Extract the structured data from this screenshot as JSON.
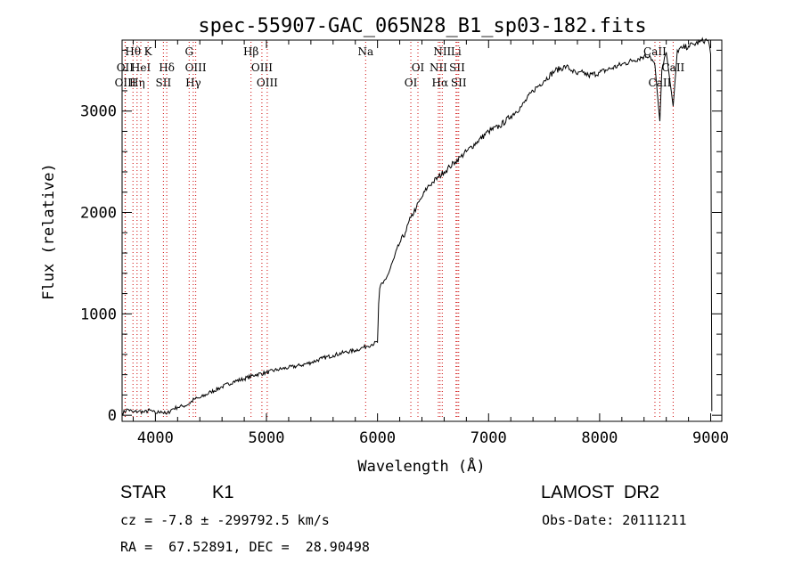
{
  "chart_data": {
    "type": "line",
    "title": "spec-55907-GAC_065N28_B1_sp03-182.fits",
    "xlabel": "Wavelength (Å)",
    "ylabel": "Flux (relative)",
    "xlim": [
      3700,
      9100
    ],
    "ylim": [
      -60,
      3700
    ],
    "xticks": [
      4000,
      5000,
      6000,
      7000,
      8000,
      9000
    ],
    "xtick_labels": [
      "4000",
      "5000",
      "6000",
      "7000",
      "8000",
      "9000"
    ],
    "yticks": [
      0,
      1000,
      2000,
      3000
    ],
    "ytick_labels": [
      "0",
      "1000",
      "2000",
      "3000"
    ],
    "line_color": "#000000",
    "marker_color": "#cc0000",
    "series": [
      {
        "x": [
          3700,
          3750,
          3800,
          3850,
          3900,
          3950,
          4000,
          4050,
          4100,
          4150,
          4200,
          4250,
          4300,
          4350,
          4400,
          4500,
          4600,
          4700,
          4800,
          4900,
          5000,
          5100,
          5200,
          5300,
          5400,
          5500,
          5600,
          5700,
          5800,
          5850,
          5900,
          5950,
          6000,
          6010,
          6020,
          6050,
          6100,
          6150,
          6200,
          6250,
          6300,
          6350,
          6400,
          6450,
          6500,
          6550,
          6600,
          6650,
          6700,
          6750,
          6800,
          6900,
          7000,
          7100,
          7200,
          7300,
          7400,
          7500,
          7600,
          7700,
          7750,
          7800,
          7850,
          7900,
          8000,
          8100,
          8200,
          8300,
          8400,
          8450,
          8498,
          8542,
          8560,
          8600,
          8662,
          8700,
          8750,
          8800,
          8850,
          8900,
          8950,
          8980,
          9000,
          9010
        ],
        "y": [
          20,
          60,
          30,
          40,
          30,
          50,
          20,
          40,
          10,
          60,
          80,
          90,
          110,
          160,
          170,
          230,
          280,
          330,
          360,
          400,
          420,
          450,
          470,
          490,
          520,
          560,
          590,
          620,
          640,
          660,
          680,
          700,
          720,
          1100,
          1250,
          1300,
          1400,
          1550,
          1700,
          1800,
          1950,
          2050,
          2150,
          2250,
          2300,
          2350,
          2400,
          2450,
          2500,
          2550,
          2600,
          2700,
          2800,
          2850,
          2950,
          3050,
          3200,
          3300,
          3400,
          3440,
          3400,
          3360,
          3380,
          3350,
          3380,
          3420,
          3460,
          3500,
          3540,
          3550,
          3450,
          2900,
          3400,
          3580,
          3050,
          3600,
          3620,
          3640,
          3660,
          3680,
          3700,
          3690,
          3560,
          40
        ]
      }
    ],
    "line_markers": [
      {
        "x": 3727,
        "label": "OII",
        "row": 1
      },
      {
        "x": 3729,
        "label": "OIII",
        "row": 2
      },
      {
        "x": 3798,
        "label": "Hθ",
        "row": 0
      },
      {
        "x": 3835,
        "label": "Hη",
        "row": 2
      },
      {
        "x": 3869,
        "label": "HeI",
        "row": 1
      },
      {
        "x": 3934,
        "label": "K",
        "row": 0
      },
      {
        "x": 4102,
        "label": "Hδ",
        "row": 1
      },
      {
        "x": 4072,
        "label": "SII",
        "row": 2
      },
      {
        "x": 4304,
        "label": "G",
        "row": 0
      },
      {
        "x": 4363,
        "label": "OIII",
        "row": 1
      },
      {
        "x": 4341,
        "label": "Hγ",
        "row": 2
      },
      {
        "x": 4861,
        "label": "Hβ",
        "row": 0
      },
      {
        "x": 4959,
        "label": "OIII",
        "row": 1
      },
      {
        "x": 5007,
        "label": "OIII",
        "row": 2
      },
      {
        "x": 5893,
        "label": "Na",
        "row": 0
      },
      {
        "x": 6300,
        "label": "OI",
        "row": 2
      },
      {
        "x": 6364,
        "label": "OI",
        "row": 1
      },
      {
        "x": 6548,
        "label": "NII",
        "row": 1
      },
      {
        "x": 6563,
        "label": "Hα",
        "row": 2
      },
      {
        "x": 6583,
        "label": "NII",
        "row": 0
      },
      {
        "x": 6707,
        "label": "Li",
        "row": 0
      },
      {
        "x": 6717,
        "label": "SII",
        "row": 1
      },
      {
        "x": 6731,
        "label": "SII",
        "row": 2
      },
      {
        "x": 8498,
        "label": "CaII",
        "row": 0
      },
      {
        "x": 8542,
        "label": "CaII",
        "row": 2
      },
      {
        "x": 8662,
        "label": "CaII",
        "row": 1
      }
    ]
  },
  "info": {
    "object_class": "STAR",
    "subclass": "K1",
    "survey": "LAMOST  DR2",
    "redshift": "cz = -7.8 ± -299792.5 km/s",
    "obs_date": "Obs-Date: 20111211",
    "coords": "RA =  67.52891, DEC =  28.90498"
  }
}
